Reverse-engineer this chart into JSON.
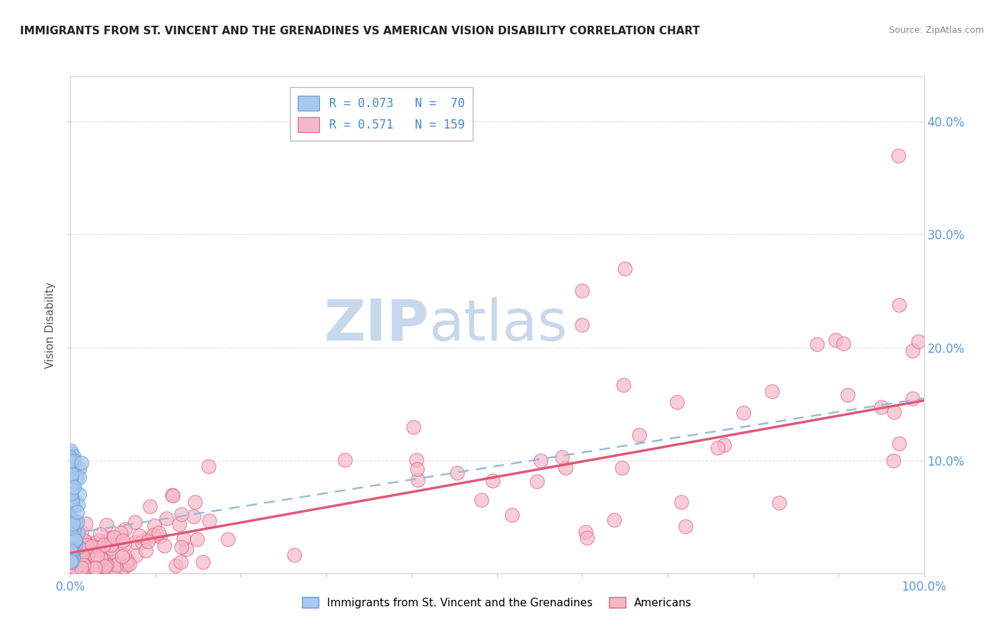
{
  "title": "IMMIGRANTS FROM ST. VINCENT AND THE GRENADINES VS AMERICAN VISION DISABILITY CORRELATION CHART",
  "source": "Source: ZipAtlas.com",
  "ylabel": "Vision Disability",
  "xlim": [
    0,
    1.0
  ],
  "ylim": [
    0,
    0.44
  ],
  "ytick_positions": [
    0.0,
    0.1,
    0.2,
    0.3,
    0.4
  ],
  "legend_r1": "R = 0.073",
  "legend_n1": "N =  70",
  "legend_r2": "R = 0.571",
  "legend_n2": "N = 159",
  "blue_color": "#a8c8f0",
  "blue_edge_color": "#6699cc",
  "pink_color": "#f5b8c8",
  "pink_edge_color": "#e06080",
  "pink_line_color": "#e05878",
  "blue_line_color": "#99bbdd",
  "watermark_zip": "ZIP",
  "watermark_atlas": "atlas",
  "watermark_color": "#c8d8ec",
  "background_color": "#ffffff",
  "grid_color": "#dddddd",
  "axis_tick_color": "#5599dd",
  "title_color": "#222222",
  "ylabel_color": "#555555",
  "source_color": "#888888"
}
